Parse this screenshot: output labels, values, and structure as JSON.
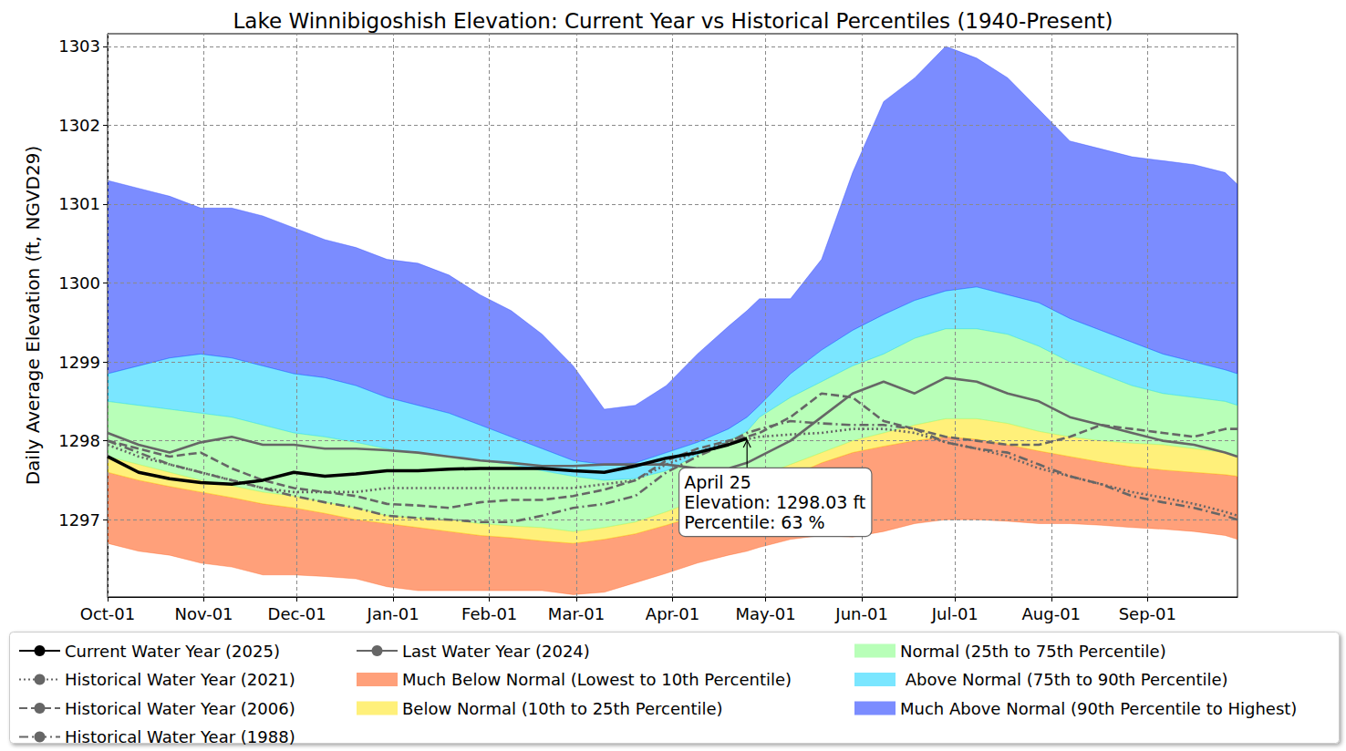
{
  "chart_data": {
    "type": "line",
    "title": "Lake Winnibigoshish Elevation: Current Year vs Historical Percentiles (1940-Present)",
    "y_label": "Daily Average Elevation (ft, NGVD29)",
    "x": [
      0,
      10,
      20,
      30,
      40,
      50,
      60,
      70,
      80,
      90,
      100,
      110,
      120,
      130,
      140,
      150,
      160,
      170,
      180,
      190,
      200,
      206,
      210,
      220,
      230,
      240,
      250,
      260,
      270,
      280,
      290,
      300,
      310,
      320,
      330,
      340,
      350,
      360,
      364
    ],
    "xlim": [
      0,
      364
    ],
    "xticks": [
      {
        "value": 0,
        "label": "Oct-01"
      },
      {
        "value": 31,
        "label": "Nov-01"
      },
      {
        "value": 61,
        "label": "Dec-01"
      },
      {
        "value": 92,
        "label": "Jan-01"
      },
      {
        "value": 123,
        "label": "Feb-01"
      },
      {
        "value": 151,
        "label": "Mar-01"
      },
      {
        "value": 182,
        "label": "Apr-01"
      },
      {
        "value": 212,
        "label": "May-01"
      },
      {
        "value": 243,
        "label": "Jun-01"
      },
      {
        "value": 273,
        "label": "Jul-01"
      },
      {
        "value": 304,
        "label": "Aug-01"
      },
      {
        "value": 335,
        "label": "Sep-01"
      }
    ],
    "ylim": [
      1296.02,
      1303.16
    ],
    "yticks": [
      1297,
      1298,
      1299,
      1300,
      1301,
      1302,
      1303
    ],
    "grid": true,
    "legend": "bottom",
    "series": [
      {
        "name": "Current Water Year (2025)",
        "color": "#000000",
        "line_style": "solid",
        "values": [
          1297.8,
          1297.6,
          1297.52,
          1297.47,
          1297.45,
          1297.5,
          1297.6,
          1297.55,
          1297.58,
          1297.62,
          1297.62,
          1297.64,
          1297.65,
          1297.65,
          1297.65,
          1297.62,
          1297.6,
          1297.68,
          1297.78,
          1297.85,
          1297.95,
          1298.03,
          null,
          null,
          null,
          null,
          null,
          null,
          null,
          null,
          null,
          null,
          null,
          null,
          null,
          null,
          null,
          null,
          null
        ]
      },
      {
        "name": "Historical Water Year (2021)",
        "color": "#666666",
        "line_style": "dotted",
        "values": [
          1297.95,
          1297.8,
          1297.7,
          1297.6,
          1297.5,
          1297.4,
          1297.35,
          1297.35,
          1297.35,
          1297.4,
          1297.4,
          1297.4,
          1297.4,
          1297.4,
          1297.4,
          1297.4,
          1297.45,
          1297.5,
          1297.7,
          1297.85,
          1297.98,
          1298.02,
          1298.05,
          1298.08,
          1298.1,
          1298.15,
          1298.15,
          1298.1,
          1297.98,
          1297.9,
          1297.8,
          1297.65,
          1297.55,
          1297.45,
          1297.35,
          1297.28,
          1297.2,
          1297.1,
          1297.05
        ]
      },
      {
        "name": "Historical Water Year (2006)",
        "color": "#666666",
        "line_style": "dashed",
        "values": [
          1298.0,
          1297.9,
          1297.8,
          1297.85,
          1297.65,
          1297.5,
          1297.4,
          1297.35,
          1297.3,
          1297.2,
          1297.18,
          1297.15,
          1297.22,
          1297.25,
          1297.25,
          1297.3,
          1297.38,
          1297.5,
          1297.75,
          1297.9,
          1298.0,
          1298.05,
          1298.1,
          1298.3,
          1298.6,
          1298.55,
          1298.25,
          1298.15,
          1298.05,
          1298.0,
          1297.95,
          1297.95,
          1298.05,
          1298.2,
          1298.15,
          1298.1,
          1298.05,
          1298.15,
          1298.15
        ]
      },
      {
        "name": "Historical Water Year (1988)",
        "color": "#666666",
        "line_style": "dashdot",
        "values": [
          1298.0,
          1297.85,
          1297.7,
          1297.6,
          1297.5,
          1297.4,
          1297.3,
          1297.22,
          1297.15,
          1297.05,
          1297.02,
          1297.0,
          1296.97,
          1296.97,
          1297.05,
          1297.15,
          1297.2,
          1297.3,
          1297.6,
          1297.8,
          1297.98,
          1298.1,
          1298.15,
          1298.25,
          1298.22,
          1298.2,
          1298.2,
          1298.15,
          1297.98,
          1297.9,
          1297.85,
          1297.7,
          1297.55,
          1297.45,
          1297.3,
          1297.22,
          1297.15,
          1297.05,
          1297.0
        ]
      },
      {
        "name": "Last Water Year (2024)",
        "color": "#666666",
        "line_style": "solid",
        "values": [
          1298.1,
          1297.95,
          1297.85,
          1297.98,
          1298.05,
          1297.95,
          1297.95,
          1297.9,
          1297.9,
          1297.88,
          1297.85,
          1297.8,
          1297.75,
          1297.72,
          1297.68,
          1297.68,
          1297.7,
          1297.7,
          1297.7,
          1297.65,
          1297.65,
          1297.72,
          1297.8,
          1298.0,
          1298.3,
          1298.6,
          1298.75,
          1298.6,
          1298.8,
          1298.75,
          1298.6,
          1298.5,
          1298.3,
          1298.2,
          1298.1,
          1298.0,
          1297.95,
          1297.85,
          1297.8
        ]
      }
    ],
    "bands": [
      {
        "name": "Much Below Normal (Lowest to 10th Percentile)",
        "color": "#ff520d",
        "lower": [
          1296.7,
          1296.6,
          1296.55,
          1296.45,
          1296.4,
          1296.3,
          1296.3,
          1296.28,
          1296.25,
          1296.15,
          1296.1,
          1296.1,
          1296.1,
          1296.1,
          1296.1,
          1296.05,
          1296.08,
          1296.2,
          1296.32,
          1296.45,
          1296.55,
          1296.6,
          1296.65,
          1296.75,
          1296.8,
          1296.78,
          1296.85,
          1296.95,
          1297.0,
          1297.0,
          1296.98,
          1296.95,
          1296.95,
          1296.93,
          1296.9,
          1296.88,
          1296.85,
          1296.8,
          1296.75
        ],
        "upper": [
          1297.6,
          1297.5,
          1297.42,
          1297.35,
          1297.28,
          1297.2,
          1297.15,
          1297.08,
          1297.0,
          1296.95,
          1296.9,
          1296.85,
          1296.8,
          1296.77,
          1296.73,
          1296.7,
          1296.75,
          1296.82,
          1296.93,
          1297.05,
          1297.18,
          1297.28,
          1297.4,
          1297.55,
          1297.72,
          1297.85,
          1297.93,
          1298.0,
          1298.05,
          1298.02,
          1297.95,
          1297.87,
          1297.8,
          1297.73,
          1297.67,
          1297.63,
          1297.6,
          1297.57,
          1297.55
        ]
      },
      {
        "name": "Below Normal (10th to 25th Percentile)",
        "color": "#ffe30d",
        "lower": [
          1297.6,
          1297.5,
          1297.42,
          1297.35,
          1297.28,
          1297.2,
          1297.15,
          1297.08,
          1297.0,
          1296.95,
          1296.9,
          1296.85,
          1296.8,
          1296.77,
          1296.73,
          1296.7,
          1296.75,
          1296.82,
          1296.93,
          1297.05,
          1297.18,
          1297.28,
          1297.4,
          1297.55,
          1297.72,
          1297.85,
          1297.93,
          1298.0,
          1298.05,
          1298.02,
          1297.95,
          1297.87,
          1297.8,
          1297.73,
          1297.67,
          1297.63,
          1297.6,
          1297.57,
          1297.55
        ],
        "upper": [
          1297.8,
          1297.7,
          1297.6,
          1297.5,
          1297.43,
          1297.35,
          1297.3,
          1297.22,
          1297.15,
          1297.05,
          1297.02,
          1297.0,
          1296.95,
          1296.92,
          1296.9,
          1296.85,
          1296.9,
          1296.97,
          1297.1,
          1297.25,
          1297.38,
          1297.45,
          1297.55,
          1297.7,
          1297.85,
          1298.0,
          1298.1,
          1298.2,
          1298.28,
          1298.28,
          1298.22,
          1298.12,
          1298.05,
          1298.0,
          1297.97,
          1297.95,
          1297.9,
          1297.85,
          1297.8
        ]
      },
      {
        "name": "Normal (25th to 75th Percentile)",
        "color": "#7dff7d",
        "lower": [
          1297.8,
          1297.7,
          1297.6,
          1297.5,
          1297.43,
          1297.35,
          1297.3,
          1297.22,
          1297.15,
          1297.05,
          1297.02,
          1297.0,
          1296.95,
          1296.92,
          1296.9,
          1296.85,
          1296.9,
          1296.97,
          1297.1,
          1297.25,
          1297.38,
          1297.45,
          1297.55,
          1297.7,
          1297.85,
          1298.0,
          1298.1,
          1298.2,
          1298.28,
          1298.28,
          1298.22,
          1298.12,
          1298.05,
          1298.0,
          1297.97,
          1297.95,
          1297.9,
          1297.85,
          1297.8
        ],
        "upper": [
          1298.5,
          1298.45,
          1298.4,
          1298.35,
          1298.3,
          1298.2,
          1298.1,
          1298.05,
          1297.98,
          1297.9,
          1297.85,
          1297.8,
          1297.75,
          1297.7,
          1297.62,
          1297.55,
          1297.5,
          1297.52,
          1297.62,
          1297.82,
          1298.0,
          1298.12,
          1298.3,
          1298.55,
          1298.75,
          1298.95,
          1299.1,
          1299.3,
          1299.42,
          1299.42,
          1299.35,
          1299.2,
          1299.0,
          1298.85,
          1298.7,
          1298.6,
          1298.55,
          1298.5,
          1298.45
        ]
      },
      {
        "name": " Above Normal (75th to 90th Percentile)",
        "color": "#0dd1ff",
        "lower": [
          1298.5,
          1298.45,
          1298.4,
          1298.35,
          1298.3,
          1298.2,
          1298.1,
          1298.05,
          1297.98,
          1297.9,
          1297.85,
          1297.8,
          1297.75,
          1297.7,
          1297.62,
          1297.55,
          1297.5,
          1297.52,
          1297.62,
          1297.82,
          1298.0,
          1298.12,
          1298.3,
          1298.55,
          1298.75,
          1298.95,
          1299.1,
          1299.3,
          1299.42,
          1299.42,
          1299.35,
          1299.2,
          1299.0,
          1298.85,
          1298.7,
          1298.6,
          1298.55,
          1298.5,
          1298.45
        ],
        "upper": [
          1298.85,
          1298.95,
          1299.05,
          1299.1,
          1299.05,
          1298.95,
          1298.85,
          1298.8,
          1298.7,
          1298.55,
          1298.45,
          1298.35,
          1298.2,
          1298.05,
          1297.9,
          1297.75,
          1297.7,
          1297.72,
          1297.85,
          1297.98,
          1298.15,
          1298.3,
          1298.45,
          1298.85,
          1299.15,
          1299.4,
          1299.6,
          1299.78,
          1299.9,
          1299.95,
          1299.85,
          1299.75,
          1299.55,
          1299.4,
          1299.25,
          1299.1,
          1299.0,
          1298.9,
          1298.85
        ]
      },
      {
        "name": "Much Above Normal (90th Percentile to Highest)",
        "color": "#0f2dff",
        "lower": [
          1298.85,
          1298.95,
          1299.05,
          1299.1,
          1299.05,
          1298.95,
          1298.85,
          1298.8,
          1298.7,
          1298.55,
          1298.45,
          1298.35,
          1298.2,
          1298.05,
          1297.9,
          1297.75,
          1297.7,
          1297.72,
          1297.85,
          1297.98,
          1298.15,
          1298.3,
          1298.45,
          1298.85,
          1299.15,
          1299.4,
          1299.6,
          1299.78,
          1299.9,
          1299.95,
          1299.85,
          1299.75,
          1299.55,
          1299.4,
          1299.25,
          1299.1,
          1299.0,
          1298.9,
          1298.85
        ],
        "upper": [
          1301.3,
          1301.2,
          1301.1,
          1300.95,
          1300.95,
          1300.85,
          1300.7,
          1300.55,
          1300.45,
          1300.3,
          1300.25,
          1300.1,
          1299.85,
          1299.65,
          1299.35,
          1298.95,
          1298.4,
          1298.45,
          1298.7,
          1299.1,
          1299.45,
          1299.65,
          1299.8,
          1299.8,
          1300.3,
          1301.4,
          1302.3,
          1302.6,
          1303.0,
          1302.85,
          1302.6,
          1302.2,
          1301.8,
          1301.7,
          1301.6,
          1301.55,
          1301.5,
          1301.4,
          1301.25
        ]
      }
    ],
    "annotation": {
      "x": 206,
      "y": 1298.03,
      "text": [
        "April 25",
        "Elevation: 1298.03 ft",
        "Percentile: 63 %"
      ]
    }
  }
}
